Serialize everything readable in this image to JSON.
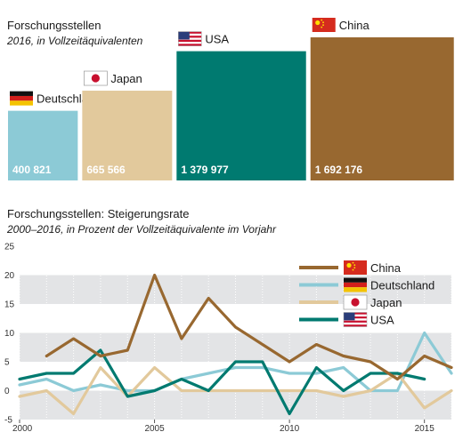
{
  "chart_data": [
    {
      "type": "bar",
      "title": "Forschungsstellen",
      "subtitle": "2016, in Vollzeitäquivalenten",
      "categories": [
        "Deutschland",
        "Japan",
        "USA",
        "China"
      ],
      "values": [
        400821,
        665566,
        1379977,
        1692176
      ],
      "value_labels": [
        "400 821",
        "665 566",
        "1 379 977",
        "1 692 176"
      ],
      "colors": [
        "#8ccad6",
        "#e2c99c",
        "#007a70",
        "#986830"
      ]
    },
    {
      "type": "line",
      "title": "Forschungsstellen: Steigerungsrate",
      "subtitle": "2000–2016, in Prozent der Vollzeitäquivalente im Vorjahr",
      "x": [
        2000,
        2001,
        2002,
        2003,
        2004,
        2005,
        2006,
        2007,
        2008,
        2009,
        2010,
        2011,
        2012,
        2013,
        2014,
        2015,
        2016
      ],
      "xlim": [
        2000,
        2016
      ],
      "ylim": [
        -5,
        25
      ],
      "x_ticks": [
        "2000",
        "2005",
        "2010",
        "2015"
      ],
      "y_ticks": [
        "25",
        "20",
        "15",
        "10",
        "5",
        "0",
        "-5"
      ],
      "legend_position": "top-right",
      "series": [
        {
          "name": "China",
          "color": "#986830",
          "values": [
            null,
            6,
            9,
            6,
            7,
            20,
            9,
            16,
            11,
            8,
            5,
            8,
            6,
            5,
            2,
            6,
            4
          ]
        },
        {
          "name": "Deutschland",
          "color": "#8ccad6",
          "values": [
            1,
            2,
            0,
            1,
            0,
            0,
            2,
            3,
            4,
            4,
            3,
            3,
            4,
            0,
            0,
            10,
            3
          ]
        },
        {
          "name": "Japan",
          "color": "#e2c99c",
          "values": [
            -1,
            0,
            -4,
            4,
            -1,
            4,
            0,
            0,
            0,
            0,
            0,
            0,
            -1,
            0,
            3,
            -3,
            0
          ]
        },
        {
          "name": "USA",
          "color": "#007a70",
          "values": [
            2,
            3,
            3,
            7,
            -1,
            0,
            2,
            0,
            5,
            5,
            -4,
            4,
            0,
            3,
            3,
            2,
            null
          ]
        }
      ]
    }
  ]
}
